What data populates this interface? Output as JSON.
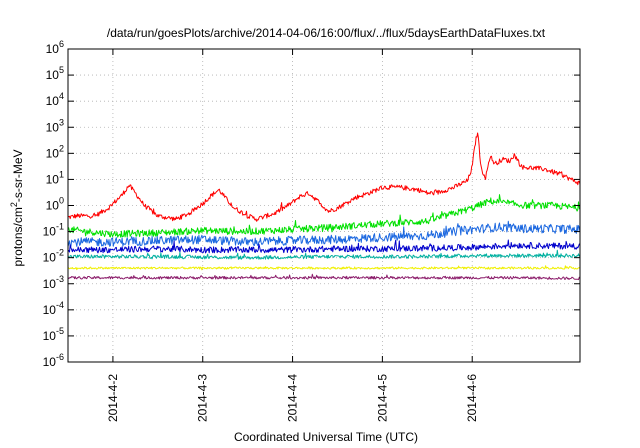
{
  "chart_data": {
    "type": "line",
    "title": "/data/run/goesPlots/archive/2014-04-06/16:00/flux/../flux/5daysEarthDataFluxes.txt",
    "xlabel": "Coordinated Universal Time (UTC)",
    "ylabel_parts": {
      "pre": "protons/cm",
      "sup": "2",
      "post": "-s-sr-MeV"
    },
    "yscale": "log",
    "ylim": [
      1e-06,
      1000000.0
    ],
    "yticks": [
      {
        "value": 1e-06,
        "base": "10",
        "exp": "-6"
      },
      {
        "value": 1e-05,
        "base": "10",
        "exp": "-5"
      },
      {
        "value": 0.0001,
        "base": "10",
        "exp": "-4"
      },
      {
        "value": 0.001,
        "base": "10",
        "exp": "-3"
      },
      {
        "value": 0.01,
        "base": "10",
        "exp": "-2"
      },
      {
        "value": 0.1,
        "base": "10",
        "exp": "-1"
      },
      {
        "value": 1,
        "base": "10",
        "exp": "0"
      },
      {
        "value": 10,
        "base": "10",
        "exp": "1"
      },
      {
        "value": 100,
        "base": "10",
        "exp": "2"
      },
      {
        "value": 1000,
        "base": "10",
        "exp": "3"
      },
      {
        "value": 10000,
        "base": "10",
        "exp": "4"
      },
      {
        "value": 100000,
        "base": "10",
        "exp": "5"
      },
      {
        "value": 1000000,
        "base": "10",
        "exp": "6"
      }
    ],
    "x_unit": "days",
    "xlim": [
      1.0,
      6.7
    ],
    "xticks": [
      {
        "value": 1.5,
        "label": "2014-4-2"
      },
      {
        "value": 2.5,
        "label": "2014-4-3"
      },
      {
        "value": 3.5,
        "label": "2014-4-4"
      },
      {
        "value": 4.5,
        "label": "2014-4-5"
      },
      {
        "value": 5.5,
        "label": "2014-4-6"
      }
    ],
    "grid": true,
    "series": [
      {
        "color": "#ff0000",
        "noise": 0.09,
        "x": [
          1.0,
          1.1,
          1.3,
          1.45,
          1.6,
          1.68,
          1.75,
          1.85,
          2.0,
          2.2,
          2.35,
          2.5,
          2.6,
          2.68,
          2.75,
          2.85,
          3.0,
          3.1,
          3.3,
          3.45,
          3.58,
          3.68,
          3.78,
          3.9,
          4.0,
          4.2,
          4.35,
          4.5,
          4.7,
          4.9,
          5.0,
          5.1,
          5.3,
          5.45,
          5.5,
          5.53,
          5.56,
          5.6,
          5.65,
          5.7,
          5.75,
          5.85,
          5.92,
          5.97,
          6.05,
          6.3,
          6.5,
          6.6,
          6.7
        ],
        "y": [
          0.35,
          0.4,
          0.4,
          0.8,
          2.5,
          6.0,
          3.0,
          1.0,
          0.4,
          0.3,
          0.5,
          1.2,
          2.5,
          4.0,
          2.0,
          0.8,
          0.4,
          0.3,
          0.5,
          1.0,
          2.2,
          3.0,
          1.5,
          0.6,
          0.8,
          2.0,
          3.0,
          5.0,
          5.0,
          4.0,
          3.0,
          3.0,
          5.0,
          9.0,
          30.0,
          200.0,
          700.0,
          25.0,
          12.0,
          80.0,
          40.0,
          60.0,
          50.0,
          90.0,
          30.0,
          25.0,
          15.0,
          10.0,
          7.0
        ]
      },
      {
        "color": "#00e000",
        "noise": 0.13,
        "x": [
          1.0,
          1.5,
          2.0,
          2.5,
          3.0,
          3.5,
          4.0,
          4.5,
          5.0,
          5.3,
          5.5,
          5.7,
          5.9,
          6.1,
          6.4,
          6.7
        ],
        "y": [
          0.12,
          0.08,
          0.09,
          0.11,
          0.1,
          0.12,
          0.15,
          0.2,
          0.25,
          0.5,
          0.8,
          1.5,
          1.2,
          1.0,
          1.0,
          0.8
        ]
      },
      {
        "color": "#1c68e0",
        "noise": 0.17,
        "x": [
          1.0,
          1.5,
          2.0,
          2.5,
          3.0,
          3.5,
          4.0,
          4.5,
          5.0,
          5.3,
          5.5,
          5.8,
          6.0,
          6.3,
          6.7
        ],
        "y": [
          0.04,
          0.04,
          0.045,
          0.05,
          0.04,
          0.045,
          0.05,
          0.06,
          0.07,
          0.1,
          0.12,
          0.15,
          0.13,
          0.13,
          0.12
        ]
      },
      {
        "color": "#0000cc",
        "noise": 0.12,
        "x": [
          1.0,
          1.5,
          2.0,
          2.5,
          3.0,
          3.5,
          4.0,
          4.5,
          5.0,
          5.5,
          6.0,
          6.4,
          6.7
        ],
        "y": [
          0.02,
          0.02,
          0.022,
          0.02,
          0.02,
          0.02,
          0.022,
          0.022,
          0.023,
          0.025,
          0.03,
          0.028,
          0.028
        ]
      },
      {
        "color": "#00b0a0",
        "noise": 0.07,
        "x": [
          1.0,
          2.0,
          3.0,
          4.0,
          5.0,
          5.5,
          6.0,
          6.7
        ],
        "y": [
          0.011,
          0.011,
          0.01,
          0.011,
          0.011,
          0.012,
          0.012,
          0.012
        ]
      },
      {
        "color": "#f0f000",
        "noise": 0.04,
        "x": [
          1.0,
          2.0,
          3.0,
          4.0,
          5.0,
          6.0,
          6.7
        ],
        "y": [
          0.004,
          0.004,
          0.004,
          0.004,
          0.004,
          0.004,
          0.004
        ]
      },
      {
        "color": "#8b1c6a",
        "noise": 0.05,
        "x": [
          1.0,
          2.0,
          3.0,
          4.0,
          5.0,
          6.0,
          6.7
        ],
        "y": [
          0.0017,
          0.0017,
          0.0017,
          0.0017,
          0.0017,
          0.0017,
          0.0016
        ]
      }
    ]
  }
}
